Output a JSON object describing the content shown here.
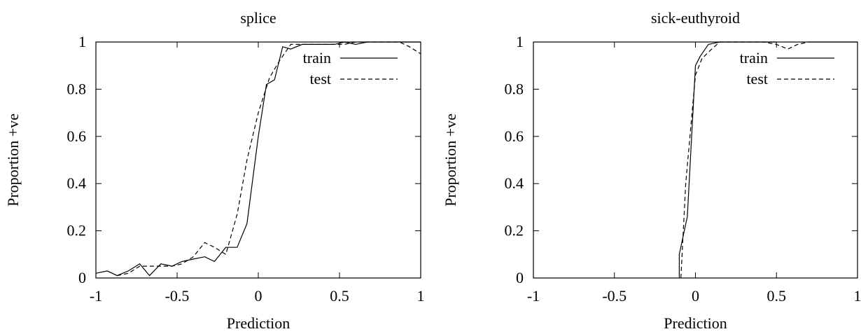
{
  "chart_data": [
    {
      "type": "line",
      "title": "splice",
      "xlabel": "Prediction",
      "ylabel": "Proportion +ve",
      "xlim": [
        -1,
        1
      ],
      "ylim": [
        0,
        1
      ],
      "xticks": [
        -1,
        -0.5,
        0,
        0.5,
        1
      ],
      "yticks": [
        0,
        0.2,
        0.4,
        0.6,
        0.8,
        1
      ],
      "grid": false,
      "legend_position": "top-right",
      "series": [
        {
          "name": "train",
          "style": "solid",
          "color": "#000000",
          "x": [
            -1.0,
            -0.93,
            -0.87,
            -0.8,
            -0.73,
            -0.67,
            -0.6,
            -0.53,
            -0.47,
            -0.4,
            -0.33,
            -0.27,
            -0.2,
            -0.13,
            -0.07,
            0.0,
            0.05,
            0.1,
            0.15,
            0.2,
            0.27,
            0.33,
            0.4,
            0.47,
            0.53,
            0.6,
            0.67,
            0.73,
            0.8,
            0.87,
            0.93,
            1.0
          ],
          "y": [
            0.02,
            0.03,
            0.01,
            0.03,
            0.06,
            0.01,
            0.06,
            0.05,
            0.07,
            0.08,
            0.09,
            0.07,
            0.13,
            0.13,
            0.23,
            0.6,
            0.82,
            0.84,
            0.98,
            0.97,
            0.99,
            0.99,
            0.99,
            0.99,
            1.0,
            0.99,
            1.0,
            1.0,
            1.0,
            1.0,
            1.0,
            1.0
          ]
        },
        {
          "name": "test",
          "style": "dashed",
          "color": "#000000",
          "x": [
            -0.87,
            -0.8,
            -0.73,
            -0.67,
            -0.6,
            -0.53,
            -0.47,
            -0.4,
            -0.33,
            -0.27,
            -0.2,
            -0.13,
            -0.07,
            0.0,
            0.07,
            0.13,
            0.2,
            0.27,
            0.33,
            0.4,
            0.47,
            0.53,
            0.6,
            0.67,
            0.73,
            0.8,
            0.87,
            0.93,
            1.0
          ],
          "y": [
            0.01,
            0.02,
            0.05,
            0.05,
            0.05,
            0.05,
            0.06,
            0.09,
            0.15,
            0.13,
            0.1,
            0.27,
            0.5,
            0.7,
            0.85,
            0.92,
            0.99,
            0.99,
            0.99,
            0.99,
            0.99,
            0.99,
            1.0,
            1.0,
            1.0,
            1.0,
            1.0,
            0.98,
            0.95
          ]
        }
      ]
    },
    {
      "type": "line",
      "title": "sick-euthyroid",
      "xlabel": "Prediction",
      "ylabel": "Proportion +ve",
      "xlim": [
        -1,
        1
      ],
      "ylim": [
        0,
        1
      ],
      "xticks": [
        -1,
        -0.5,
        0,
        0.5,
        1
      ],
      "yticks": [
        0,
        0.2,
        0.4,
        0.6,
        0.8,
        1
      ],
      "grid": false,
      "legend_position": "top-right",
      "series": [
        {
          "name": "train",
          "style": "solid",
          "color": "#000000",
          "x": [
            -0.1,
            -0.1,
            -0.05,
            0.0,
            0.03,
            0.08,
            0.15,
            0.3,
            0.5,
            0.7,
            1.0
          ],
          "y": [
            0.0,
            0.1,
            0.26,
            0.9,
            0.94,
            0.99,
            1.0,
            1.0,
            1.0,
            1.0,
            1.0
          ],
          "gap_after_index": 8
        },
        {
          "name": "test",
          "style": "dashed",
          "color": "#000000",
          "x": [
            -0.09,
            -0.06,
            0.0,
            0.04,
            0.1,
            0.15,
            0.2,
            0.3,
            0.42,
            0.5,
            0.57,
            0.63,
            0.7
          ],
          "y": [
            0.0,
            0.4,
            0.86,
            0.93,
            0.97,
            1.0,
            1.0,
            1.0,
            1.0,
            0.99,
            0.97,
            0.99,
            1.0
          ]
        }
      ]
    }
  ]
}
